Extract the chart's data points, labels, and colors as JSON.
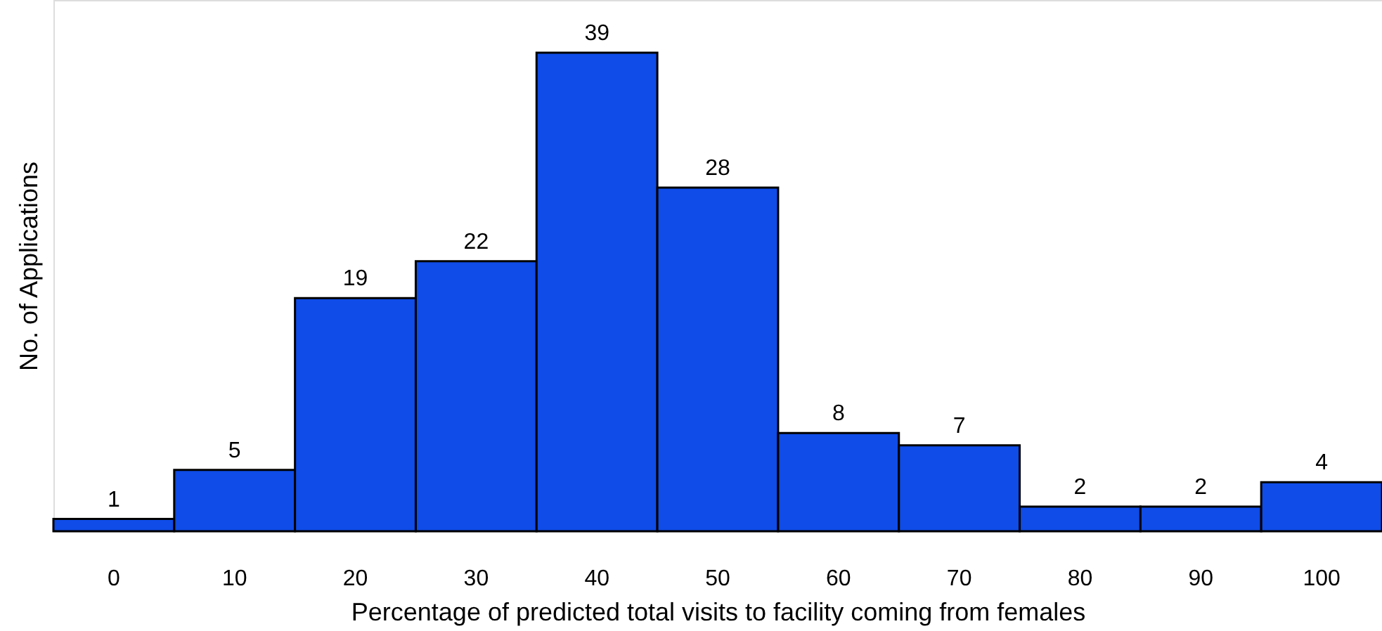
{
  "chart_data": {
    "type": "bar",
    "xlabel": "Percentage of predicted total visits to facility coming from females",
    "ylabel": "No. of Applications",
    "categories": [
      "0",
      "10",
      "20",
      "30",
      "40",
      "50",
      "60",
      "70",
      "80",
      "90",
      "100"
    ],
    "values": [
      1,
      5,
      19,
      22,
      39,
      28,
      8,
      7,
      2,
      2,
      4
    ],
    "color": "#0f4ce8",
    "data_labels": true
  }
}
